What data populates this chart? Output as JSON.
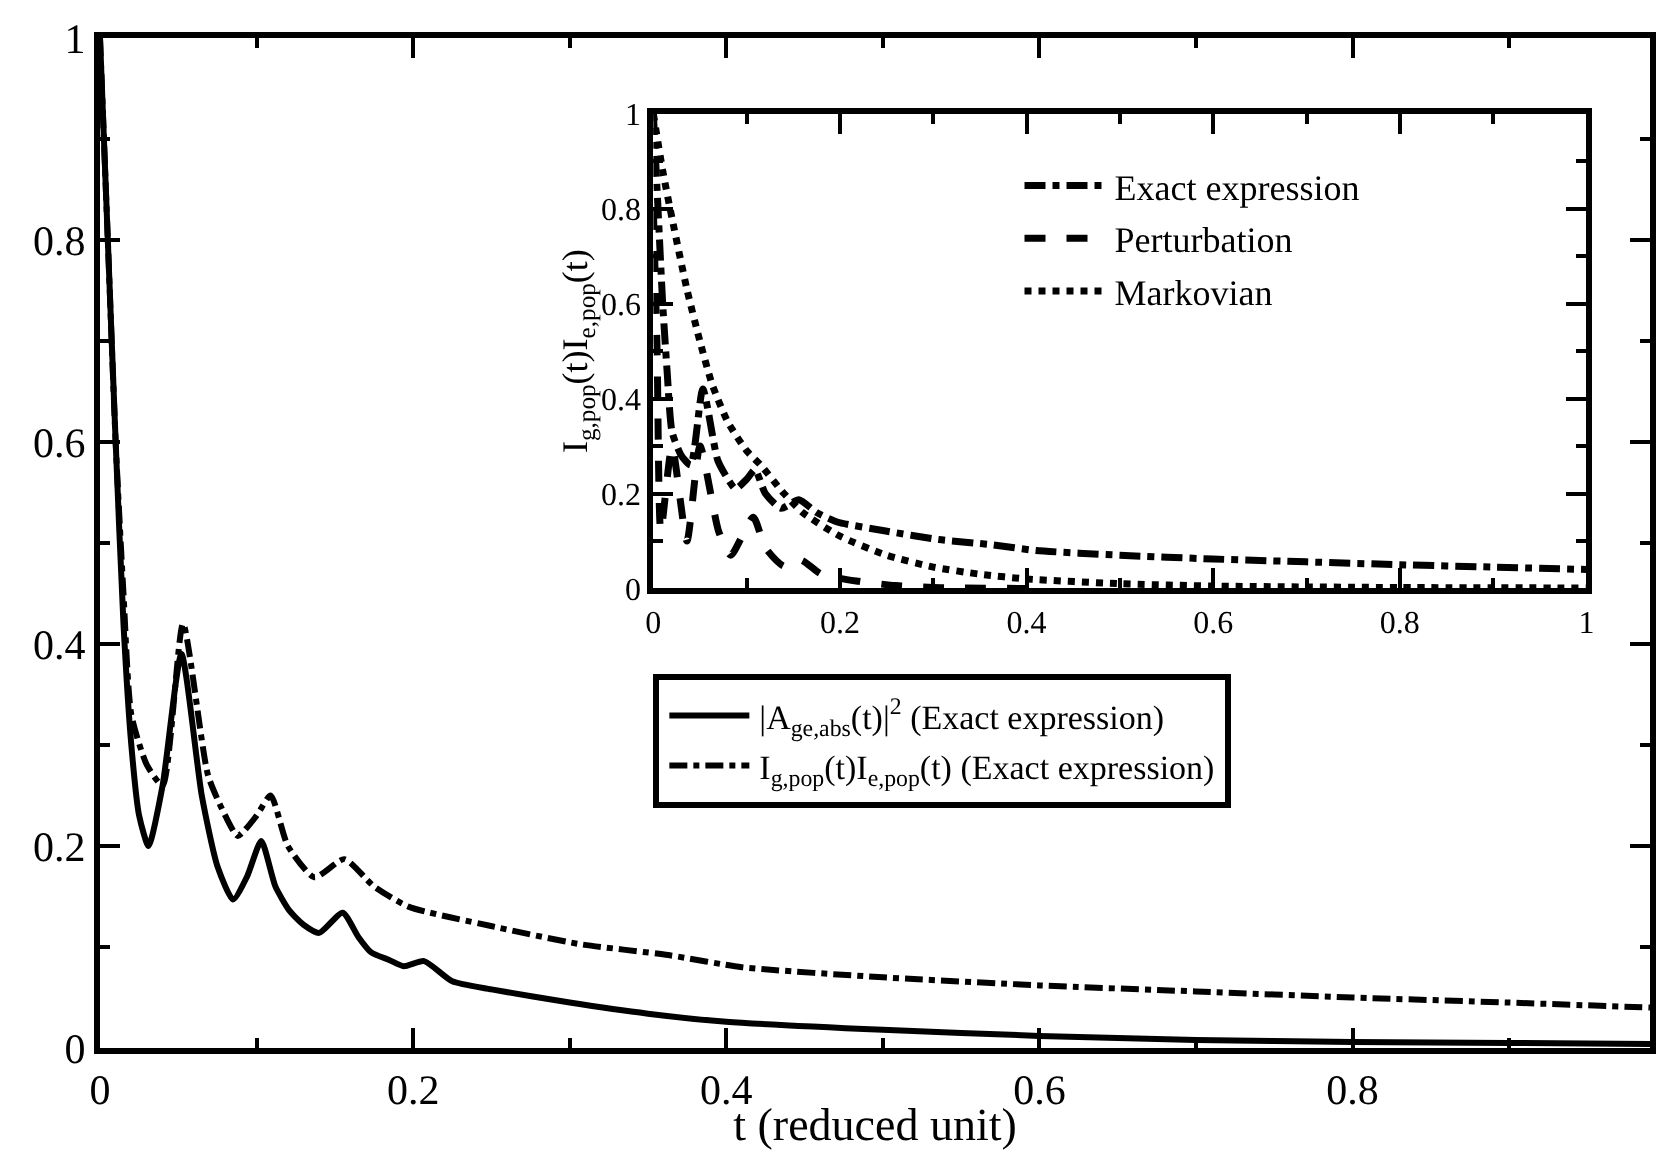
{
  "chart_data": [
    {
      "type": "line",
      "xlabel": "t (reduced unit)",
      "xlim": [
        0,
        0.99
      ],
      "ylim": [
        0,
        1
      ],
      "xticks": [
        0,
        0.2,
        0.4,
        0.6,
        0.8
      ],
      "yticks": [
        0,
        0.2,
        0.4,
        0.6,
        0.8,
        1
      ],
      "grid": false,
      "legend": "right",
      "marker": "none",
      "series": [
        {
          "name": "|A$_{ge,abs}$(t)|$^{2}$ (Exact expression)",
          "color": "#000000",
          "line_style": "solid",
          "x": [
            0,
            0.005,
            0.01,
            0.015,
            0.02,
            0.025,
            0.031,
            0.04,
            0.052,
            0.065,
            0.075,
            0.085,
            0.094,
            0.103,
            0.112,
            0.121,
            0.13,
            0.14,
            0.155,
            0.165,
            0.173,
            0.185,
            0.194,
            0.207,
            0.225,
            0.25,
            0.3,
            0.35,
            0.4,
            0.5,
            0.6,
            0.7,
            0.8,
            0.9,
            0.99
          ],
          "values": [
            1,
            0.8,
            0.6,
            0.42,
            0.3,
            0.23,
            0.2,
            0.26,
            0.39,
            0.25,
            0.18,
            0.147,
            0.17,
            0.205,
            0.16,
            0.136,
            0.122,
            0.114,
            0.134,
            0.11,
            0.095,
            0.087,
            0.081,
            0.086,
            0.066,
            0.058,
            0.045,
            0.034,
            0.026,
            0.018,
            0.012,
            0.008,
            0.006,
            0.005,
            0.004
          ]
        },
        {
          "name": "I$_{g,pop}$(t)I$_{e,pop}$(t) (Exact expression)",
          "color": "#000000",
          "line_style": "dashdot",
          "x": [
            0,
            0.005,
            0.01,
            0.015,
            0.02,
            0.03,
            0.04,
            0.053,
            0.069,
            0.08,
            0.088,
            0.1,
            0.109,
            0.12,
            0.137,
            0.156,
            0.175,
            0.197,
            0.249,
            0.306,
            0.363,
            0.41,
            0.5,
            0.6,
            0.7,
            0.8,
            0.9,
            0.99
          ],
          "values": [
            1,
            0.8,
            0.6,
            0.45,
            0.33,
            0.28,
            0.26,
            0.42,
            0.27,
            0.23,
            0.21,
            0.23,
            0.25,
            0.2,
            0.169,
            0.187,
            0.16,
            0.14,
            0.121,
            0.103,
            0.092,
            0.08,
            0.07,
            0.062,
            0.056,
            0.05,
            0.045,
            0.04
          ]
        }
      ]
    },
    {
      "type": "line",
      "ylabel": "I$_{g,pop}$(t)I$_{e,pop}$(t)",
      "xlim": [
        0,
        1
      ],
      "ylim": [
        0,
        1
      ],
      "xticks": [
        0,
        0.2,
        0.4,
        0.6,
        0.8,
        1
      ],
      "yticks": [
        0,
        0.2,
        0.4,
        0.6,
        0.8,
        1
      ],
      "grid": false,
      "legend": "top right",
      "marker": "none",
      "series": [
        {
          "name": "Exact expression",
          "color": "#000000",
          "line_style": "dashdot",
          "x": [
            0,
            0.005,
            0.01,
            0.015,
            0.02,
            0.03,
            0.04,
            0.053,
            0.069,
            0.08,
            0.088,
            0.1,
            0.109,
            0.12,
            0.137,
            0.156,
            0.175,
            0.197,
            0.249,
            0.306,
            0.363,
            0.41,
            0.5,
            0.6,
            0.7,
            0.8,
            0.9,
            1
          ],
          "values": [
            1,
            0.8,
            0.6,
            0.45,
            0.33,
            0.28,
            0.26,
            0.42,
            0.27,
            0.23,
            0.21,
            0.23,
            0.25,
            0.2,
            0.169,
            0.187,
            0.16,
            0.14,
            0.121,
            0.103,
            0.092,
            0.08,
            0.07,
            0.062,
            0.056,
            0.05,
            0.045,
            0.04
          ]
        },
        {
          "name": "Perturbation",
          "color": "#000000",
          "line_style": "dashed",
          "x": [
            0,
            0.004,
            0.008,
            0.02,
            0.036,
            0.05,
            0.07,
            0.083,
            0.107,
            0.12,
            0.14,
            0.158,
            0.18,
            0.22,
            0.26,
            0.3,
            0.4
          ],
          "values": [
            0.8,
            0.5,
            0.12,
            0.3,
            0.1,
            0.3,
            0.12,
            0.07,
            0.15,
            0.086,
            0.047,
            0.06,
            0.03,
            0.015,
            0.006,
            0.002,
            0
          ]
        },
        {
          "name": "Markovian",
          "color": "#000000",
          "line_style": "dotted",
          "x": [
            0,
            0.01,
            0.02,
            0.036,
            0.05,
            0.063,
            0.08,
            0.1,
            0.115,
            0.14,
            0.16,
            0.2,
            0.25,
            0.3,
            0.35,
            0.4,
            0.5,
            0.6,
            0.8,
            1
          ],
          "values": [
            1,
            0.88,
            0.78,
            0.63,
            0.52,
            0.43,
            0.35,
            0.29,
            0.26,
            0.2,
            0.16,
            0.11,
            0.07,
            0.045,
            0.03,
            0.02,
            0.01,
            0.005,
            0.002,
            0.001
          ]
        }
      ]
    }
  ]
}
